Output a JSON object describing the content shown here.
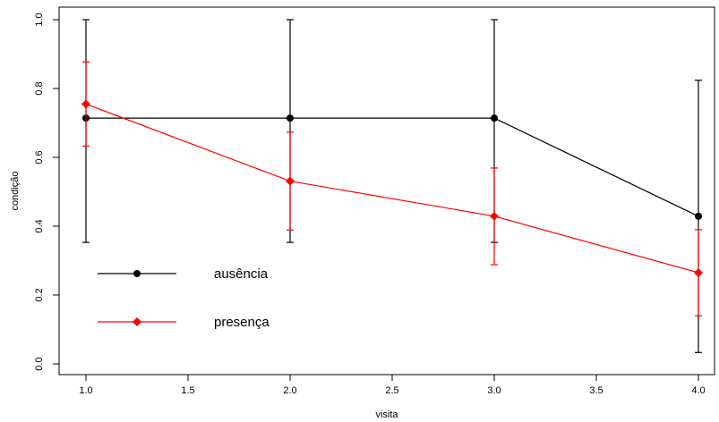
{
  "chart_data": {
    "type": "line",
    "xlabel": "visita",
    "ylabel": "condição",
    "xlim": [
      1,
      4
    ],
    "ylim": [
      0,
      1
    ],
    "x_ticks": [
      "1.0",
      "1.5",
      "2.0",
      "2.5",
      "3.0",
      "3.5",
      "4.0"
    ],
    "y_ticks": [
      "0.0",
      "0.2",
      "0.4",
      "0.6",
      "0.8",
      "1.0"
    ],
    "grid": false,
    "legend_position": "bottom-left",
    "series": [
      {
        "name": "ausência",
        "color": "#000000",
        "marker": "circle",
        "points": [
          {
            "x": 1,
            "y": 0.714,
            "low": 0.353,
            "high": 1.0
          },
          {
            "x": 2,
            "y": 0.714,
            "low": 0.353,
            "high": 1.0
          },
          {
            "x": 3,
            "y": 0.714,
            "low": 0.353,
            "high": 1.0
          },
          {
            "x": 4,
            "y": 0.429,
            "low": 0.033,
            "high": 0.824
          }
        ]
      },
      {
        "name": "presença",
        "color": "#ff0000",
        "marker": "diamond",
        "points": [
          {
            "x": 1,
            "y": 0.755,
            "low": 0.633,
            "high": 0.877
          },
          {
            "x": 2,
            "y": 0.531,
            "low": 0.389,
            "high": 0.673
          },
          {
            "x": 3,
            "y": 0.429,
            "low": 0.288,
            "high": 0.569
          },
          {
            "x": 4,
            "y": 0.265,
            "low": 0.14,
            "high": 0.39
          }
        ]
      }
    ]
  }
}
